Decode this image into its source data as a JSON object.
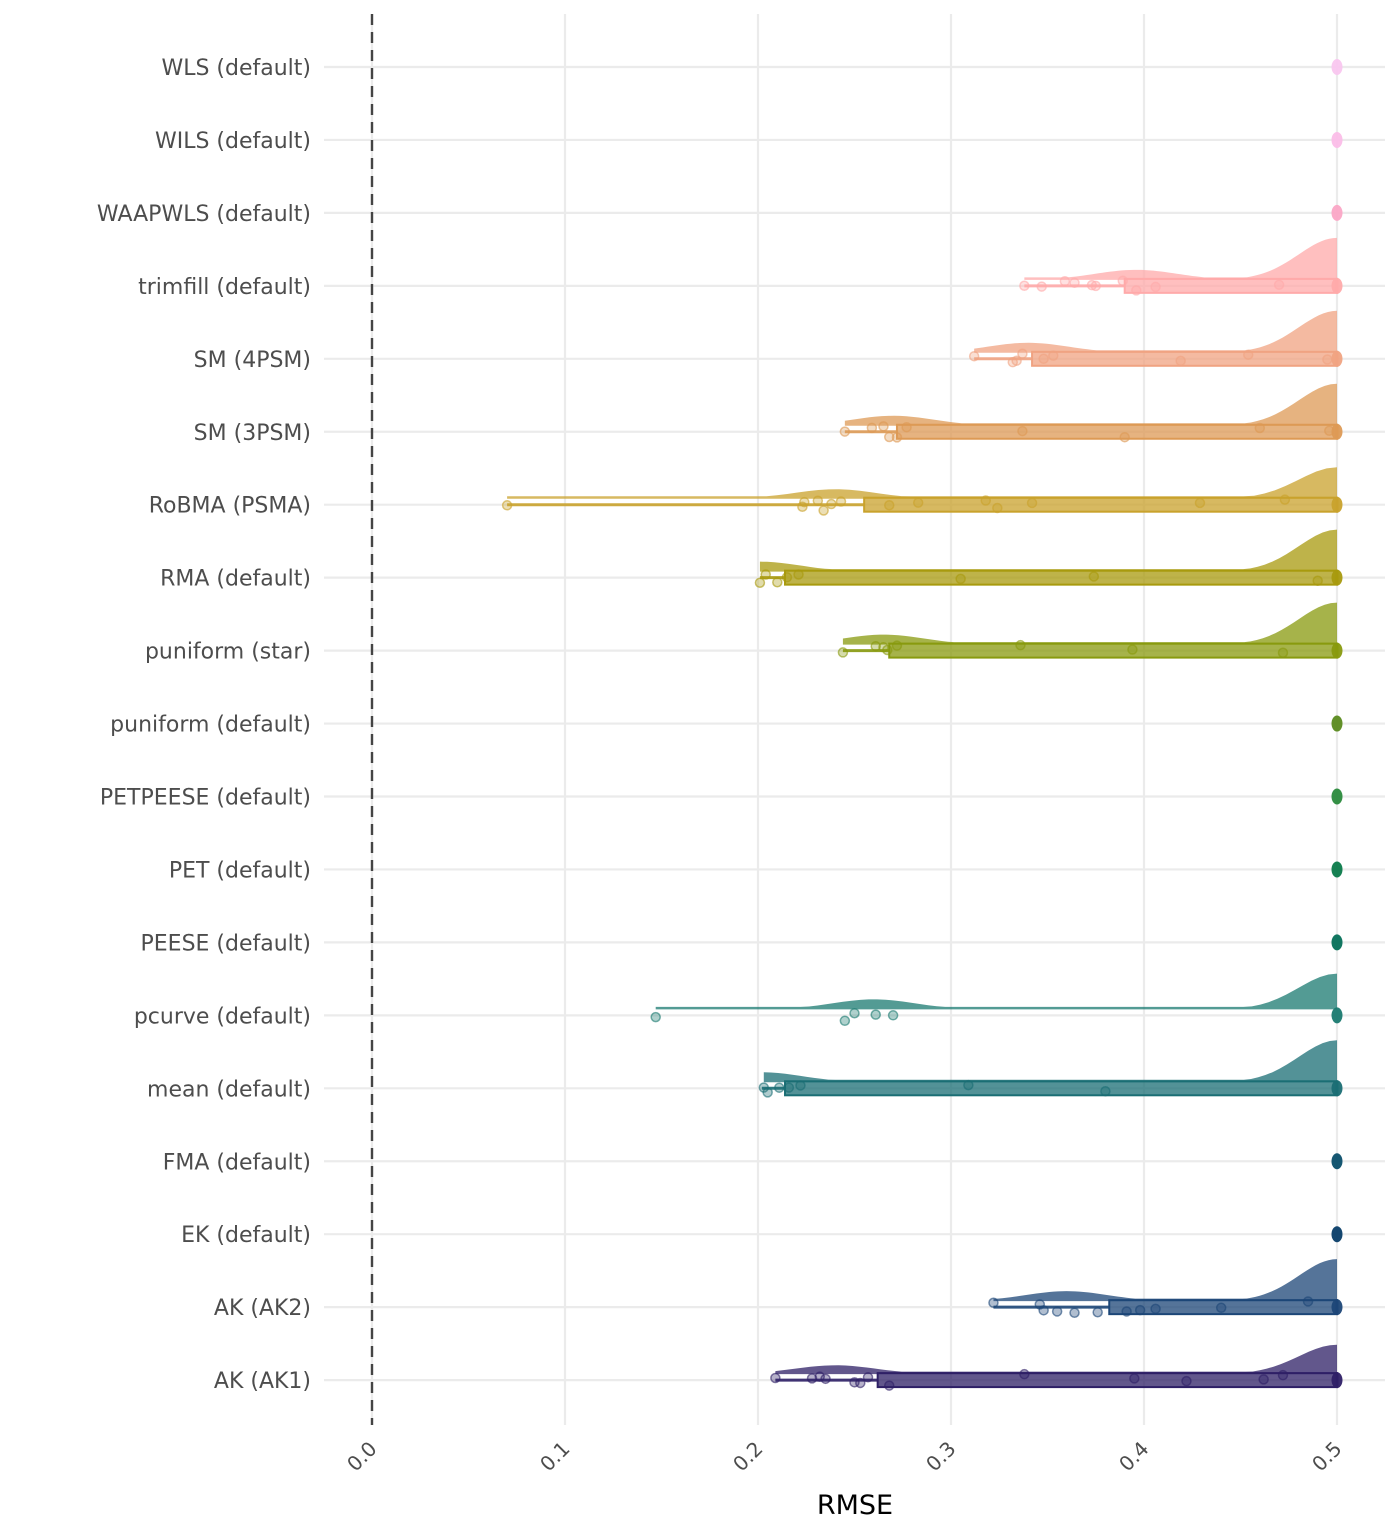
{
  "chart_data": {
    "type": "raincloud",
    "title": "",
    "xlabel": "RMSE",
    "ylabel": "",
    "xlim": [
      0,
      0.5
    ],
    "x_ticks": [
      0.0,
      0.1,
      0.2,
      0.3,
      0.4,
      0.5
    ],
    "x_tick_labels": [
      "0.0",
      "0.1",
      "0.2",
      "0.3",
      "0.4",
      "0.5"
    ],
    "x_tick_rotation_deg": 45,
    "reference_line": {
      "x": 0,
      "style": "dashed"
    },
    "grid": true,
    "legend": "none",
    "categories": [
      "WLS (default)",
      "WILS (default)",
      "WAAPWLS (default)",
      "trimfill (default)",
      "SM (4PSM)",
      "SM (3PSM)",
      "RoBMA (PSMA)",
      "RMA (default)",
      "puniform (star)",
      "puniform (default)",
      "PETPEESE (default)",
      "PET (default)",
      "PEESE (default)",
      "pcurve (default)",
      "mean (default)",
      "FMA (default)",
      "EK (default)",
      "AK (AK2)",
      "AK (AK1)"
    ],
    "series": [
      {
        "name": "WLS (default)",
        "color": "#f9c6ef",
        "points": [
          0.5
        ],
        "box": null,
        "density_peak": 0
      },
      {
        "name": "WILS (default)",
        "color": "#fbbde8",
        "points": [
          0.5
        ],
        "box": null,
        "density_peak": 0
      },
      {
        "name": "WAAPWLS (default)",
        "color": "#fba6c6",
        "points": [
          0.5
        ],
        "box": null,
        "density_peak": 0
      },
      {
        "name": "trimfill (default)",
        "color": "#ffaaaa",
        "points": [
          0.338,
          0.347,
          0.359,
          0.364,
          0.373,
          0.375,
          0.389,
          0.396,
          0.406,
          0.47,
          0.5
        ],
        "box": {
          "whisker_low": 0.338,
          "q1": 0.39,
          "median": 0.5,
          "q3": 0.5,
          "whisker_high": 0.5
        },
        "density_bump": 0.396,
        "density_peak": 1.0
      },
      {
        "name": "SM (4PSM)",
        "color": "#f0a382",
        "points": [
          0.312,
          0.332,
          0.334,
          0.337,
          0.348,
          0.353,
          0.419,
          0.454,
          0.495,
          0.5
        ],
        "box": {
          "whisker_low": 0.312,
          "q1": 0.342,
          "median": 0.5,
          "q3": 0.5,
          "whisker_high": 0.5
        },
        "density_bump": 0.34,
        "density_peak": 1.0
      },
      {
        "name": "SM (3PSM)",
        "color": "#dd9a55",
        "points": [
          0.245,
          0.259,
          0.265,
          0.268,
          0.272,
          0.277,
          0.337,
          0.39,
          0.46,
          0.496,
          0.5
        ],
        "box": {
          "whisker_low": 0.245,
          "q1": 0.272,
          "median": 0.5,
          "q3": 0.5,
          "whisker_high": 0.5
        },
        "density_bump": 0.27,
        "density_peak": 1.0
      },
      {
        "name": "RoBMA (PSMA)",
        "color": "#c9a22c",
        "points": [
          0.07,
          0.223,
          0.224,
          0.231,
          0.234,
          0.238,
          0.243,
          0.268,
          0.283,
          0.318,
          0.324,
          0.342,
          0.429,
          0.473,
          0.5
        ],
        "box": {
          "whisker_low": 0.07,
          "q1": 0.255,
          "median": 0.5,
          "q3": 0.5,
          "whisker_high": 0.5
        },
        "density_bump": 0.24,
        "density_peak": 0.75
      },
      {
        "name": "RMA (default)",
        "color": "#a89a0e",
        "points": [
          0.201,
          0.204,
          0.21,
          0.215,
          0.221,
          0.305,
          0.374,
          0.49,
          0.5
        ],
        "box": {
          "whisker_low": 0.201,
          "q1": 0.214,
          "median": 0.5,
          "q3": 0.5,
          "whisker_high": 0.5
        },
        "density_bump": 0.201,
        "density_peak": 1.0
      },
      {
        "name": "puniform (star)",
        "color": "#889a0e",
        "points": [
          0.244,
          0.261,
          0.265,
          0.267,
          0.272,
          0.336,
          0.394,
          0.472,
          0.5
        ],
        "box": {
          "whisker_low": 0.244,
          "q1": 0.268,
          "median": 0.5,
          "q3": 0.5,
          "whisker_high": 0.5
        },
        "density_bump": 0.265,
        "density_peak": 1.0
      },
      {
        "name": "puniform (default)",
        "color": "#5a8a1e",
        "points": [
          0.5
        ],
        "box": null,
        "density_peak": 0
      },
      {
        "name": "PETPEESE (default)",
        "color": "#2a8a3c",
        "points": [
          0.5
        ],
        "box": null,
        "density_peak": 0
      },
      {
        "name": "PET (default)",
        "color": "#0a7a4a",
        "points": [
          0.5
        ],
        "box": null,
        "density_peak": 0
      },
      {
        "name": "PEESE (default)",
        "color": "#057058",
        "points": [
          0.5
        ],
        "box": null,
        "density_peak": 0
      },
      {
        "name": "pcurve (default)",
        "color": "#1a7a70",
        "points": [
          0.147,
          0.245,
          0.25,
          0.261,
          0.27,
          0.5
        ],
        "box": null,
        "density_bump": 0.26,
        "density_peak": 0.85
      },
      {
        "name": "mean (default)",
        "color": "#1a6e74",
        "points": [
          0.203,
          0.205,
          0.211,
          0.216,
          0.222,
          0.309,
          0.38,
          0.5
        ],
        "box": {
          "whisker_low": 0.202,
          "q1": 0.214,
          "median": 0.5,
          "q3": 0.5,
          "whisker_high": 0.5
        },
        "density_bump": 0.202,
        "density_peak": 1.0
      },
      {
        "name": "FMA (default)",
        "color": "#0a4e6a",
        "points": [
          0.5
        ],
        "box": null,
        "density_peak": 0
      },
      {
        "name": "EK (default)",
        "color": "#083d68",
        "points": [
          0.5
        ],
        "box": null,
        "density_peak": 0
      },
      {
        "name": "AK (AK2)",
        "color": "#1c4677",
        "points": [
          0.322,
          0.346,
          0.348,
          0.355,
          0.364,
          0.376,
          0.391,
          0.398,
          0.406,
          0.44,
          0.485,
          0.5
        ],
        "box": {
          "whisker_low": 0.322,
          "q1": 0.382,
          "median": 0.5,
          "q3": 0.5,
          "whisker_high": 0.5
        },
        "density_bump": 0.36,
        "density_peak": 1.0
      },
      {
        "name": "AK (AK1)",
        "color": "#2e1f66",
        "points": [
          0.209,
          0.228,
          0.232,
          0.235,
          0.25,
          0.253,
          0.257,
          0.268,
          0.338,
          0.395,
          0.422,
          0.462,
          0.472,
          0.5
        ],
        "box": {
          "whisker_low": 0.209,
          "q1": 0.262,
          "median": 0.5,
          "q3": 0.5,
          "whisker_high": 0.5
        },
        "density_bump": 0.24,
        "density_peak": 0.7
      }
    ]
  }
}
